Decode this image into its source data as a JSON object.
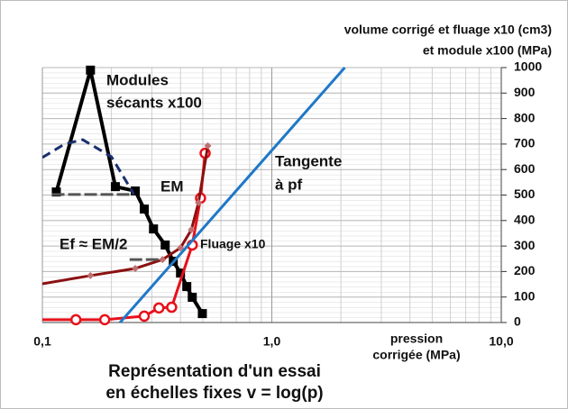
{
  "chart_data": {
    "type": "line",
    "xscale": "log",
    "title_lines": [
      "volume corrigé et fluage x10 (cm3)",
      "et module x100 (MPa)"
    ],
    "xlabel_lines": [
      "pression",
      "corrigée (MPa)"
    ],
    "caption_lines": [
      "Représentation d'un essai",
      "en échelles fixes v = log(p)"
    ],
    "xlim": [
      0.1,
      10
    ],
    "xticks": [
      {
        "value": 0.1,
        "label": "0,1"
      },
      {
        "value": 1,
        "label": "1,0"
      },
      {
        "value": 10,
        "label": "10,0"
      }
    ],
    "ylim": [
      0,
      1000
    ],
    "yticks": [
      0,
      100,
      200,
      300,
      400,
      500,
      600,
      700,
      800,
      900,
      1000
    ],
    "grid": true,
    "series": [
      {
        "name": "Modules sécants x100",
        "color": "#000000",
        "marker": "square",
        "x": [
          0.115,
          0.162,
          0.208,
          0.254,
          0.278,
          0.305,
          0.343,
          0.372,
          0.4,
          0.426,
          0.45,
          0.498
        ],
        "values": [
          512,
          990,
          533,
          516,
          445,
          367,
          304,
          240,
          194,
          141,
          99,
          35
        ]
      },
      {
        "name": "Fluage x10",
        "color": "#e8101a",
        "marker": "circle",
        "x": [
          0.1,
          0.14,
          0.187,
          0.278,
          0.322,
          0.366,
          0.45,
          0.489,
          0.512
        ],
        "values": [
          11,
          11,
          11,
          25,
          57,
          60,
          304,
          488,
          664
        ]
      },
      {
        "name": "volume",
        "color": "#8b1010",
        "marker": "diamond",
        "x": [
          0.1,
          0.162,
          0.254,
          0.334,
          0.4,
          0.446,
          0.479,
          0.526
        ],
        "values": [
          152,
          184,
          212,
          247,
          293,
          364,
          470,
          693
        ]
      },
      {
        "name": "Tangente à pf",
        "color": "#1f78c8",
        "marker": "none",
        "x": [
          0.218,
          2.08
        ],
        "values": [
          0,
          1000
        ]
      },
      {
        "name": "dashed",
        "color": "#1a2f6e",
        "marker": "none",
        "dash": true,
        "x": [
          0.1,
          0.125,
          0.15,
          0.2,
          0.25
        ],
        "values": [
          647,
          700,
          717,
          650,
          505
        ]
      },
      {
        "name": "EM",
        "color": "#555555",
        "marker": "none",
        "x": [
          0.11,
          0.25
        ],
        "values": [
          502,
          502
        ]
      },
      {
        "name": "Ef",
        "color": "#555555",
        "marker": "none",
        "x": [
          0.24,
          0.33
        ],
        "values": [
          247,
          247
        ]
      }
    ],
    "annotations": [
      "Modules",
      "sécants x100",
      "EM",
      "Tangente",
      "à pf",
      "Ef ≈ EM/2",
      "Fluage x10"
    ]
  }
}
